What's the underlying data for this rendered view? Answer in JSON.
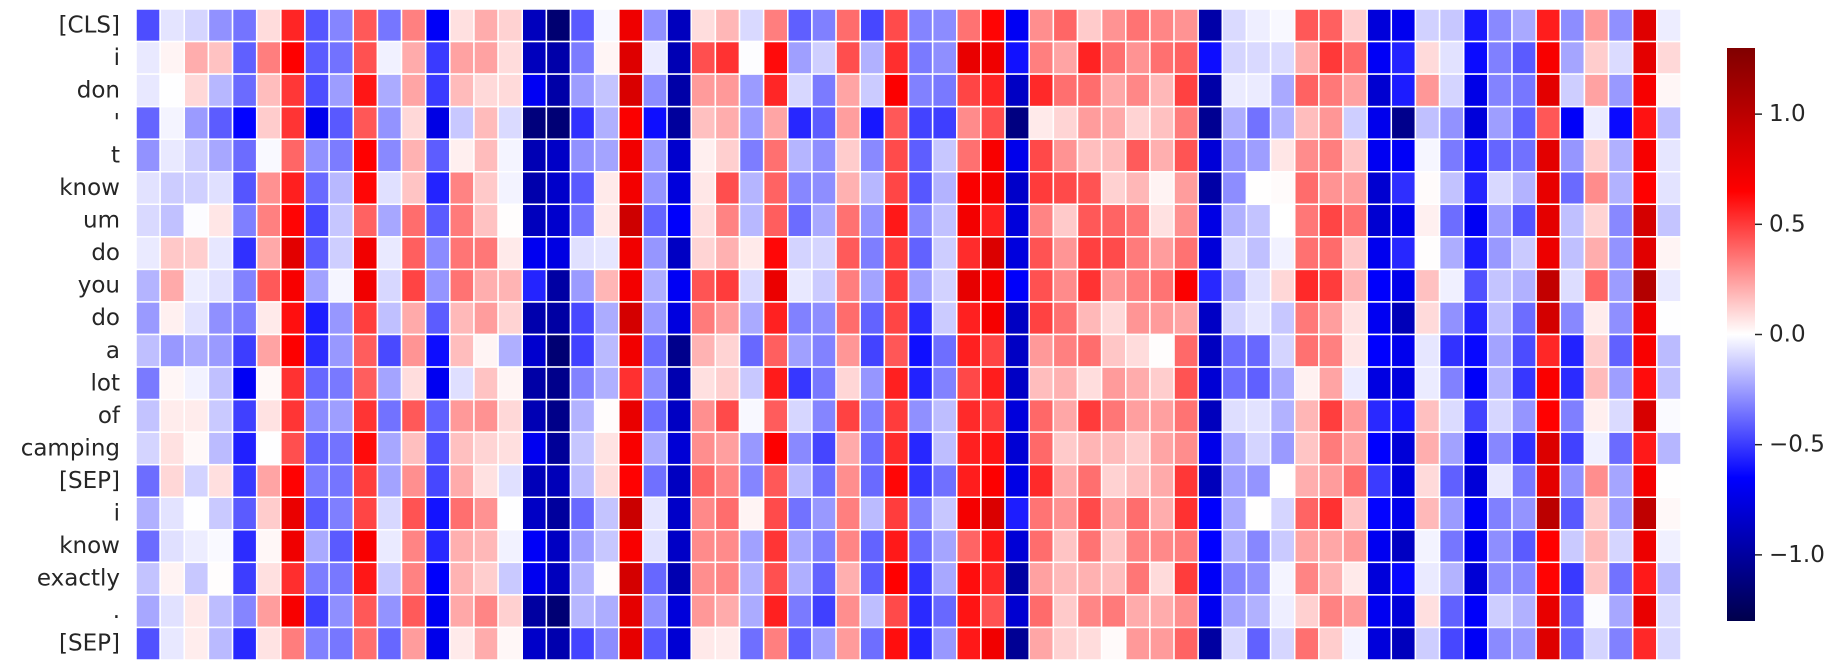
{
  "chart_data": {
    "type": "heatmap",
    "title": "",
    "xlabel": "",
    "ylabel": "",
    "row_labels": [
      "[CLS]",
      "i",
      "don",
      "'",
      "t",
      "know",
      "um",
      "do",
      "you",
      "do",
      "a",
      "lot",
      "of",
      "camping",
      "[SEP]",
      "i",
      "know",
      "exactly",
      ".",
      "[SEP]"
    ],
    "column_count": 64,
    "column_labels_shown": false,
    "grid": true,
    "colormap": "seismic",
    "colors": {
      "low": "#00004c",
      "mid": "#ffffff",
      "high": "#800000"
    },
    "vmin": -1.3,
    "vmax": 1.3,
    "colorbar": {
      "placement": "right",
      "ticks": [
        -1.0,
        -0.5,
        0.0,
        0.5,
        1.0
      ],
      "tick_labels": [
        "−1.0",
        "−0.5",
        "0.0",
        "0.5",
        "1.0"
      ]
    },
    "column_profile": [
      -0.28,
      -0.05,
      -0.04,
      -0.12,
      -0.48,
      0.12,
      0.55,
      -0.42,
      -0.3,
      0.5,
      -0.25,
      0.25,
      -0.55,
      0.12,
      0.18,
      0.0,
      -0.85,
      -1.02,
      -0.32,
      -0.1,
      0.7,
      -0.3,
      -0.88,
      0.18,
      0.25,
      -0.2,
      0.5,
      -0.3,
      -0.35,
      0.3,
      -0.3,
      0.5,
      -0.45,
      -0.3,
      0.5,
      0.6,
      -0.85,
      0.35,
      0.25,
      0.3,
      0.2,
      0.25,
      0.15,
      0.35,
      -0.85,
      -0.2,
      -0.2,
      -0.1,
      0.25,
      0.3,
      0.15,
      -0.7,
      -0.75,
      0.05,
      -0.3,
      -0.7,
      -0.25,
      -0.35,
      0.75,
      -0.35,
      0.1,
      -0.3,
      0.75,
      -0.05
    ],
    "row_profile": [
      0.0,
      0.1,
      0.05,
      -0.15,
      0.0,
      0.05,
      0.05,
      0.1,
      0.15,
      0.0,
      -0.05,
      -0.05,
      0.05,
      0.0,
      0.05,
      0.1,
      0.05,
      0.0,
      0.0,
      -0.05
    ],
    "noise_seed": 11
  }
}
